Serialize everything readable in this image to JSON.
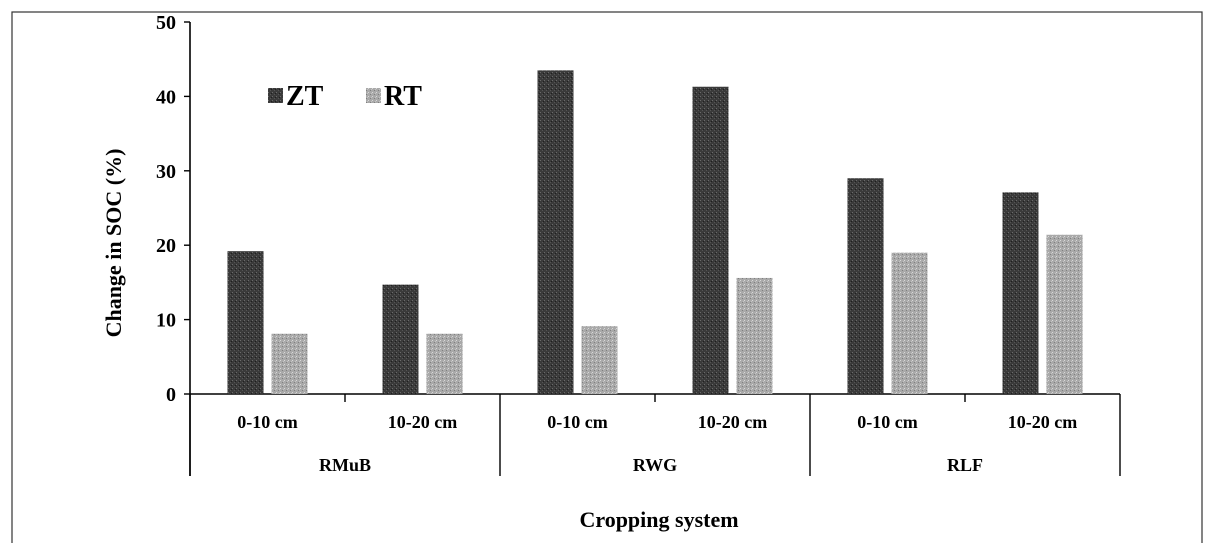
{
  "chart_data": {
    "type": "bar",
    "title": "",
    "ylabel": "Change in  SOC (%)",
    "xlabel": "Cropping system",
    "ylim": [
      0,
      50
    ],
    "yticks": [
      0,
      10,
      20,
      30,
      40,
      50
    ],
    "groups": [
      {
        "name": "RMuB",
        "categories": [
          "0-10 cm",
          "10-20 cm"
        ]
      },
      {
        "name": "RWG",
        "categories": [
          "0-10 cm",
          "10-20 cm"
        ]
      },
      {
        "name": "RLF",
        "categories": [
          "0-10 cm",
          "10-20 cm"
        ]
      }
    ],
    "categories": [
      "0-10 cm",
      "10-20 cm",
      "0-10 cm",
      "10-20 cm",
      "0-10 cm",
      "10-20 cm"
    ],
    "series": [
      {
        "name": "ZT",
        "color": "#3a3a3a",
        "values": [
          19.2,
          14.7,
          43.5,
          41.3,
          29.0,
          27.1
        ]
      },
      {
        "name": "RT",
        "color": "#a9a9a9",
        "values": [
          8.1,
          8.1,
          9.1,
          15.6,
          19.0,
          21.4
        ]
      }
    ],
    "grid": false,
    "legend_position": "top-left"
  }
}
